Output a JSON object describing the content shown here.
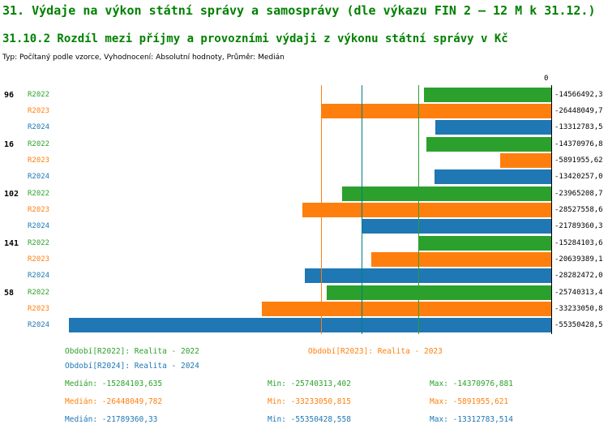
{
  "title": "31. Výdaje na výkon státní správy a samosprávy (dle výkazu FIN 2 – 12 M k 31.12.)",
  "subtitle": "31.10.2 Rozdíl mezi příjmy a provozními výdaji z výkonu státní správy v Kč",
  "meta": "Typ: Počítaný podle vzorce, Vyhodnocení: Absolutní hodnoty, Průměr: Medián",
  "axis": {
    "zero_label": "0"
  },
  "colors": {
    "series": {
      "R2022": "#2ca02c",
      "R2023": "#ff7f0e",
      "R2024": "#1f77b4"
    },
    "median_lines": {
      "R2022": "#2ca02c",
      "R2023": "#ff7f0e",
      "R2024": "#008080"
    },
    "title_text": "#008000",
    "axis": "#000000"
  },
  "chart_data": {
    "type": "bar",
    "orientation": "horizontal",
    "title": "31.10.2 Rozdíl mezi příjmy a provozními výdaji z výkonu státní správy v Kč",
    "series_names": [
      "R2022",
      "R2023",
      "R2024"
    ],
    "xlim": [
      -55350428.558,
      0
    ],
    "grid": false,
    "groups": [
      {
        "label": "96",
        "bars": [
          {
            "series": "R2022",
            "value": -14566492.3,
            "label": "-14566492,3"
          },
          {
            "series": "R2023",
            "value": -26448049.7,
            "label": "-26448049,7"
          },
          {
            "series": "R2024",
            "value": -13312783.5,
            "label": "-13312783,5"
          }
        ]
      },
      {
        "label": "16",
        "bars": [
          {
            "series": "R2022",
            "value": -14370976.8,
            "label": "-14370976,8"
          },
          {
            "series": "R2023",
            "value": -5891955.62,
            "label": "-5891955,62"
          },
          {
            "series": "R2024",
            "value": -13420257.0,
            "label": "-13420257,0"
          }
        ]
      },
      {
        "label": "102",
        "bars": [
          {
            "series": "R2022",
            "value": -23965208.7,
            "label": "-23965208,7"
          },
          {
            "series": "R2023",
            "value": -28527558.6,
            "label": "-28527558,6"
          },
          {
            "series": "R2024",
            "value": -21789360.3,
            "label": "-21789360,3"
          }
        ]
      },
      {
        "label": "141",
        "bars": [
          {
            "series": "R2022",
            "value": -15284103.6,
            "label": "-15284103,6"
          },
          {
            "series": "R2023",
            "value": -20639389.1,
            "label": "-20639389,1"
          },
          {
            "series": "R2024",
            "value": -28282472.0,
            "label": "-28282472,0"
          }
        ]
      },
      {
        "label": "58",
        "bars": [
          {
            "series": "R2022",
            "value": -25740313.4,
            "label": "-25740313,4"
          },
          {
            "series": "R2023",
            "value": -33233050.8,
            "label": "-33233050,8"
          },
          {
            "series": "R2024",
            "value": -55350428.5,
            "label": "-55350428,5"
          }
        ]
      }
    ],
    "medians": [
      {
        "series": "R2022",
        "value": -15284103.635
      },
      {
        "series": "R2023",
        "value": -26448049.782
      },
      {
        "series": "R2024",
        "value": -21789360.33
      }
    ]
  },
  "legend": [
    {
      "label": "Období[R2022]: Realita - 2022"
    },
    {
      "label": "Období[R2023]: Realita - 2023"
    },
    {
      "label": "Období[R2024]: Realita - 2024"
    }
  ],
  "stats": [
    {
      "median": "Medián: -15284103,635",
      "min": "Min: -25740313,402",
      "max": "Max: -14370976,881"
    },
    {
      "median": "Medián: -26448049,782",
      "min": "Min: -33233050,815",
      "max": "Max: -5891955,621"
    },
    {
      "median": "Medián: -21789360,33",
      "min": "Min: -55350428,558",
      "max": "Max: -13312783,514"
    }
  ]
}
